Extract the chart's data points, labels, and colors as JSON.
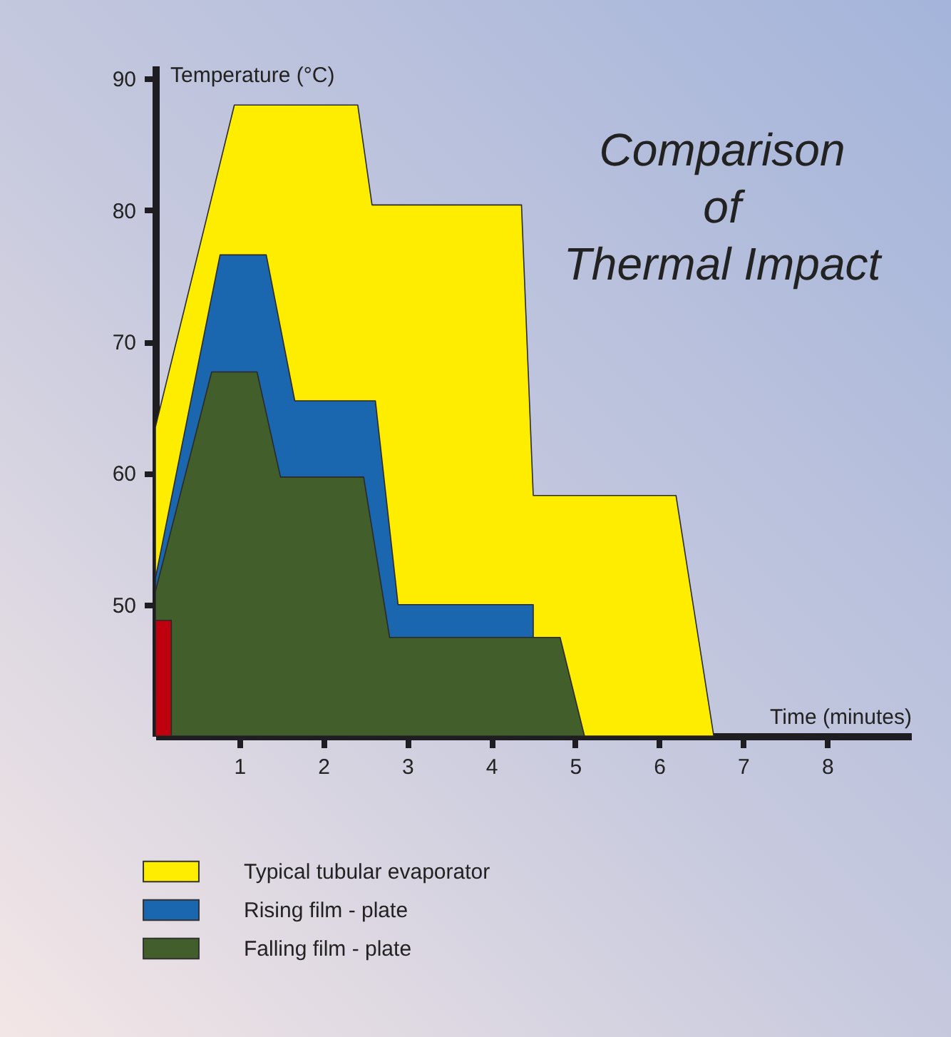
{
  "chart_data": {
    "type": "area",
    "title": "Comparison of Thermal Impact",
    "xlabel": "Time (minutes)",
    "ylabel": "Temperature (°C)",
    "xlim": [
      0,
      9
    ],
    "ylim": [
      40,
      91
    ],
    "xticks": [
      1,
      2,
      3,
      4,
      5,
      6,
      7,
      8
    ],
    "yticks": [
      50,
      60,
      70,
      80,
      90
    ],
    "legend": "bottom",
    "grid": false,
    "series": [
      {
        "name": "Typical tubular evaporator",
        "color": "#ffed00",
        "x": [
          0,
          0.94,
          2.41,
          2.58,
          4.36,
          4.5,
          6.2,
          6.65
        ],
        "values": [
          63.5,
          88,
          88,
          80.4,
          80.4,
          58.3,
          58.3,
          40
        ]
      },
      {
        "name": "Rising film - plate",
        "color": "#1a67b0",
        "x": [
          0,
          0.77,
          1.32,
          1.66,
          2.62,
          2.89,
          4.5
        ],
        "values": [
          52,
          76.6,
          76.6,
          65.5,
          65.5,
          50,
          50
        ]
      },
      {
        "name": "Falling film - plate",
        "color": "#425e2b",
        "x": [
          0,
          0.67,
          1.21,
          1.49,
          2.48,
          2.79,
          4.82,
          5.11
        ],
        "values": [
          51,
          67.7,
          67.7,
          59.7,
          59.7,
          47.5,
          47.5,
          40
        ]
      },
      {
        "color": "#bf000f",
        "x": [
          0,
          0.19
        ],
        "values": [
          48.8,
          48.8
        ]
      }
    ]
  }
}
